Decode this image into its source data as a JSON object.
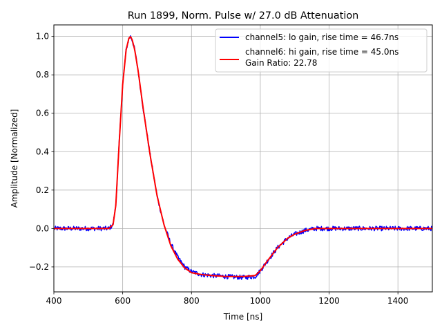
{
  "chart_data": {
    "type": "line",
    "title": "Run 1899, Norm. Pulse w/ 27.0 dB Attenuation",
    "xlabel": "Time [ns]",
    "ylabel": "Amplitude [Normalized]",
    "xlim": [
      400,
      1500
    ],
    "ylim": [
      -0.33,
      1.06
    ],
    "xticks": [
      400,
      600,
      800,
      1000,
      1200,
      1400
    ],
    "yticks": [
      -0.2,
      0.0,
      0.2,
      0.4,
      0.6,
      0.8,
      1.0
    ],
    "ytick_labels": [
      "−0.2",
      "0.0",
      "0.2",
      "0.4",
      "0.6",
      "0.8",
      "1.0"
    ],
    "grid": true,
    "legend_position": "top-right",
    "legend_extra_text": "Gain Ratio: 22.78",
    "series": [
      {
        "name": "channel5: lo gain, rise time = 46.7ns",
        "color": "#0000ff",
        "noise": 0.012,
        "x": [
          400,
          560,
          572,
          580,
          590,
          600,
          610,
          618,
          623,
          628,
          635,
          645,
          660,
          680,
          700,
          720,
          740,
          760,
          780,
          800,
          830,
          860,
          900,
          950,
          985,
          1000,
          1020,
          1050,
          1080,
          1100,
          1130,
          1160,
          1200,
          1300,
          1400,
          1500
        ],
        "y": [
          0.0,
          0.0,
          0.02,
          0.12,
          0.45,
          0.75,
          0.93,
          0.99,
          1.0,
          0.98,
          0.93,
          0.82,
          0.62,
          0.38,
          0.17,
          0.02,
          -0.08,
          -0.15,
          -0.2,
          -0.225,
          -0.24,
          -0.245,
          -0.25,
          -0.255,
          -0.25,
          -0.22,
          -0.17,
          -0.1,
          -0.05,
          -0.03,
          -0.01,
          0.0,
          0.0,
          0.0,
          0.0,
          0.0
        ]
      },
      {
        "name": "channel6: hi gain, rise time = 45.0ns",
        "color": "#ff0000",
        "noise": 0,
        "x": [
          400,
          560,
          572,
          580,
          590,
          600,
          610,
          618,
          623,
          628,
          635,
          645,
          660,
          680,
          700,
          720,
          740,
          760,
          780,
          800,
          830,
          860,
          900,
          950,
          985,
          1000,
          1020,
          1050,
          1080,
          1100,
          1130,
          1160,
          1200,
          1300,
          1400,
          1500
        ],
        "y": [
          0.0,
          0.0,
          0.02,
          0.12,
          0.45,
          0.75,
          0.93,
          0.99,
          1.0,
          0.98,
          0.93,
          0.82,
          0.62,
          0.38,
          0.17,
          0.02,
          -0.09,
          -0.16,
          -0.205,
          -0.23,
          -0.24,
          -0.245,
          -0.25,
          -0.25,
          -0.245,
          -0.22,
          -0.17,
          -0.1,
          -0.05,
          -0.03,
          -0.01,
          0.0,
          0.0,
          0.0,
          0.0,
          0.0
        ]
      }
    ]
  }
}
